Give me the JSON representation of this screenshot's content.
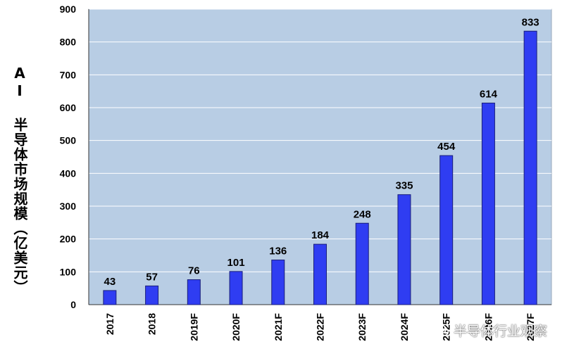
{
  "chart_data": {
    "type": "bar",
    "categories": [
      "2017",
      "2018",
      "2019F",
      "2020F",
      "2021F",
      "2022F",
      "2023F",
      "2024F",
      "2025F",
      "2026F",
      "2027F"
    ],
    "values": [
      43,
      57,
      76,
      101,
      136,
      184,
      248,
      335,
      454,
      614,
      833
    ],
    "data_labels": [
      "43",
      "57",
      "76",
      "101",
      "136",
      "184",
      "248",
      "335",
      "454",
      "614",
      "833"
    ],
    "title": "",
    "xlabel": "",
    "ylabel": "AI 半导体市场规模（亿美元）",
    "ylim": [
      0,
      900
    ],
    "yticks": [
      0,
      100,
      200,
      300,
      400,
      500,
      600,
      700,
      800,
      900
    ],
    "grid": true,
    "legend": "none"
  },
  "colors": {
    "plot_background": "#b8cde4",
    "bar_fill": "#2f3df2",
    "bar_stroke": "#1a1f7a",
    "gridline": "#ffffff",
    "axis": "#333333",
    "text": "#000000"
  },
  "watermark": {
    "icon": "wechat-icon",
    "text": "半导体行业观察"
  }
}
